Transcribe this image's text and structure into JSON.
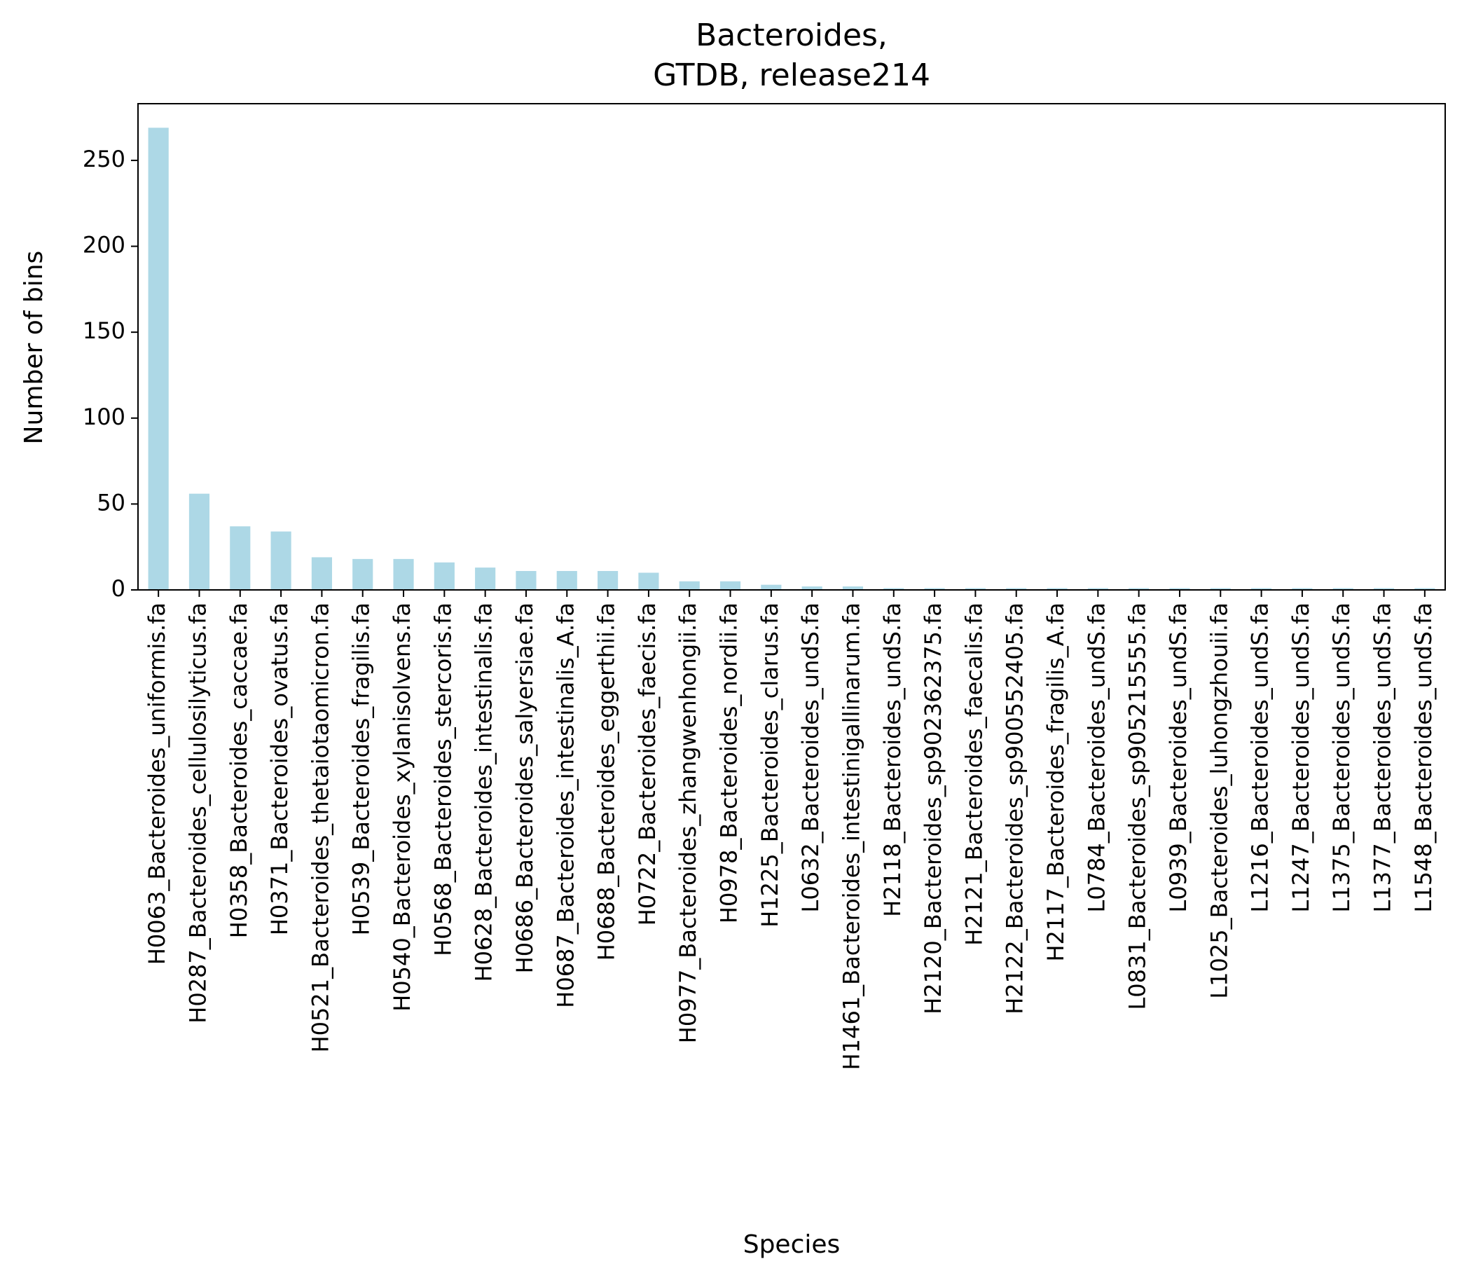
{
  "chart_data": {
    "type": "bar",
    "title": "Bacteroides,",
    "subtitle": "GTDB, release214",
    "xlabel": "Species",
    "ylabel": "Number of bins",
    "ylim": [
      0,
      283
    ],
    "yticks": [
      0,
      50,
      100,
      150,
      200,
      250
    ],
    "grid": false,
    "bar_color": "#add8e6",
    "categories": [
      "H0063_Bacteroides_uniformis.fa",
      "H0287_Bacteroides_cellulosilyticus.fa",
      "H0358_Bacteroides_caccae.fa",
      "H0371_Bacteroides_ovatus.fa",
      "H0521_Bacteroides_thetaiotaomicron.fa",
      "H0539_Bacteroides_fragilis.fa",
      "H0540_Bacteroides_xylanisolvens.fa",
      "H0568_Bacteroides_stercoris.fa",
      "H0628_Bacteroides_intestinalis.fa",
      "H0686_Bacteroides_salyersiae.fa",
      "H0687_Bacteroides_intestinalis_A.fa",
      "H0688_Bacteroides_eggerthii.fa",
      "H0722_Bacteroides_faecis.fa",
      "H0977_Bacteroides_zhangwenhongii.fa",
      "H0978_Bacteroides_nordii.fa",
      "H1225_Bacteroides_clarus.fa",
      "L0632_Bacteroides_undS.fa",
      "H1461_Bacteroides_intestinigallinarum.fa",
      "H2118_Bacteroides_undS.fa",
      "H2120_Bacteroides_sp902362375.fa",
      "H2121_Bacteroides_faecalis.fa",
      "H2122_Bacteroides_sp900552405.fa",
      "H2117_Bacteroides_fragilis_A.fa",
      "L0784_Bacteroides_undS.fa",
      "L0831_Bacteroides_sp905215555.fa",
      "L0939_Bacteroides_undS.fa",
      "L1025_Bacteroides_luhongzhouii.fa",
      "L1216_Bacteroides_undS.fa",
      "L1247_Bacteroides_undS.fa",
      "L1375_Bacteroides_undS.fa",
      "L1377_Bacteroides_undS.fa",
      "L1548_Bacteroides_undS.fa"
    ],
    "values": [
      269,
      56,
      37,
      34,
      19,
      18,
      18,
      16,
      13,
      11,
      11,
      11,
      10,
      5,
      5,
      3,
      2,
      2,
      1,
      1,
      1,
      1,
      1,
      1,
      1,
      1,
      1,
      1,
      1,
      1,
      1,
      1
    ]
  }
}
